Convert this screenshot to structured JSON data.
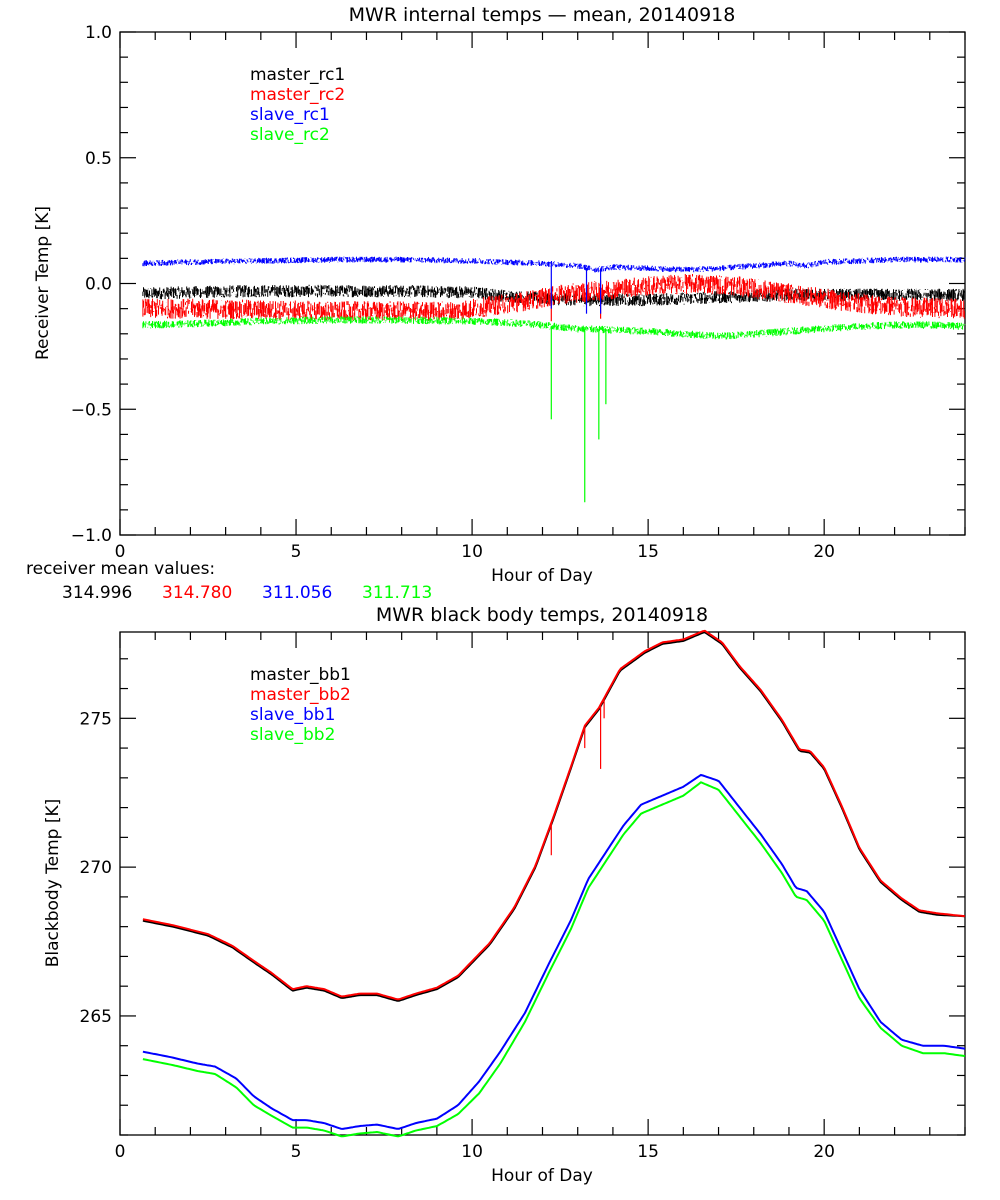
{
  "chart_data": [
    {
      "type": "line",
      "title": "MWR internal temps — mean, 20140918",
      "xlabel": "Hour of Day",
      "ylabel": "Receiver Temp [K]",
      "xlim": [
        0,
        24
      ],
      "ylim": [
        -1.0,
        1.0
      ],
      "xticks": [
        0,
        5,
        10,
        15,
        20
      ],
      "xtick_labels": [
        "0",
        "5",
        "10",
        "15",
        "20"
      ],
      "xminor_step": 1,
      "yticks": [
        -1.0,
        -0.5,
        0.0,
        0.5,
        1.0
      ],
      "ytick_labels": [
        "−1.0",
        "−0.5",
        "0.0",
        "0.5",
        "1.0"
      ],
      "yminor_step": 0.1,
      "grid": false,
      "legend_position": "top-left",
      "series": [
        {
          "name": "master_rc1",
          "color": "#000000",
          "noise": 0.025,
          "x": [
            0.65,
            2,
            4,
            6,
            8,
            10,
            11,
            12,
            13,
            14,
            15,
            16,
            17,
            18,
            19,
            20,
            21,
            22,
            23,
            24
          ],
          "y": [
            -0.04,
            -0.035,
            -0.03,
            -0.03,
            -0.03,
            -0.035,
            -0.05,
            -0.06,
            -0.065,
            -0.065,
            -0.065,
            -0.06,
            -0.055,
            -0.05,
            -0.045,
            -0.045,
            -0.045,
            -0.045,
            -0.045,
            -0.045
          ],
          "spikes": []
        },
        {
          "name": "master_rc2",
          "color": "#ff0000",
          "noise": 0.04,
          "x": [
            0.65,
            2,
            4,
            6,
            8,
            9.5,
            10.5,
            11.5,
            12.5,
            13.5,
            14.5,
            15.5,
            16.5,
            17.5,
            18.5,
            19.5,
            20.5,
            21.5,
            22.5,
            24
          ],
          "y": [
            -0.1,
            -0.1,
            -0.105,
            -0.11,
            -0.11,
            -0.11,
            -0.09,
            -0.07,
            -0.045,
            -0.03,
            -0.015,
            -0.005,
            0.0,
            -0.01,
            -0.03,
            -0.05,
            -0.07,
            -0.085,
            -0.095,
            -0.1
          ],
          "spikes": [
            [
              12.25,
              -0.15
            ],
            [
              13.65,
              -0.14
            ]
          ]
        },
        {
          "name": "slave_rc1",
          "color": "#0000ff",
          "noise": 0.012,
          "x": [
            0.65,
            2,
            4,
            6,
            8,
            10,
            11,
            12,
            13,
            13.5,
            14,
            15,
            16,
            17,
            18,
            19,
            19.5,
            20,
            21,
            22,
            23,
            24
          ],
          "y": [
            0.08,
            0.085,
            0.09,
            0.095,
            0.095,
            0.09,
            0.085,
            0.08,
            0.07,
            0.055,
            0.065,
            0.06,
            0.055,
            0.06,
            0.07,
            0.08,
            0.07,
            0.085,
            0.09,
            0.095,
            0.095,
            0.095
          ],
          "spikes": [
            [
              12.25,
              -0.1
            ],
            [
              13.25,
              -0.12
            ],
            [
              13.65,
              -0.12
            ]
          ]
        },
        {
          "name": "slave_rc2",
          "color": "#00ff00",
          "noise": 0.015,
          "x": [
            0.65,
            2,
            4,
            6,
            8,
            10,
            11,
            12,
            13,
            14,
            15,
            16,
            17,
            18,
            19,
            20,
            21,
            22,
            23,
            24
          ],
          "y": [
            -0.165,
            -0.16,
            -0.15,
            -0.145,
            -0.145,
            -0.15,
            -0.155,
            -0.165,
            -0.18,
            -0.185,
            -0.19,
            -0.2,
            -0.21,
            -0.2,
            -0.19,
            -0.18,
            -0.17,
            -0.165,
            -0.165,
            -0.17
          ],
          "spikes": [
            [
              12.25,
              -0.54
            ],
            [
              13.2,
              -0.87
            ],
            [
              13.6,
              -0.62
            ],
            [
              13.8,
              -0.48
            ]
          ]
        }
      ]
    },
    {
      "type": "line",
      "title": "MWR black body temps, 20140918",
      "xlabel": "Hour of Day",
      "ylabel": "Blackbody Temp [K]",
      "xlim": [
        0,
        24
      ],
      "ylim": [
        261.0,
        277.9
      ],
      "xticks": [
        0,
        5,
        10,
        15,
        20
      ],
      "xtick_labels": [
        "0",
        "5",
        "10",
        "15",
        "20"
      ],
      "xminor_step": 1,
      "yticks": [
        265,
        270,
        275
      ],
      "ytick_labels": [
        "265",
        "270",
        "275"
      ],
      "yminor_step": 1,
      "grid": false,
      "legend_position": "top-left",
      "series": [
        {
          "name": "master_bb1",
          "color": "#000000",
          "x": [
            0.65,
            1.5,
            2.5,
            3.2,
            3.8,
            4.3,
            4.9,
            5.3,
            5.8,
            6.3,
            6.8,
            7.3,
            7.9,
            8.4,
            9.0,
            9.6,
            10.5,
            11.2,
            11.8,
            12.3,
            12.8,
            13.2,
            13.6,
            14.2,
            14.9,
            15.4,
            16.0,
            16.6,
            17.1,
            17.6,
            18.2,
            18.8,
            19.3,
            19.6,
            20.0,
            20.5,
            21.0,
            21.6,
            22.2,
            22.7,
            23.2,
            24.0
          ],
          "y": [
            268.2,
            268.0,
            267.7,
            267.3,
            266.8,
            266.4,
            265.85,
            265.95,
            265.85,
            265.6,
            265.7,
            265.7,
            265.5,
            265.7,
            265.9,
            266.3,
            267.4,
            268.6,
            270.0,
            271.6,
            273.3,
            274.7,
            275.3,
            276.6,
            277.2,
            277.5,
            277.6,
            277.9,
            277.5,
            276.7,
            275.9,
            274.9,
            273.9,
            273.85,
            273.3,
            272.0,
            270.6,
            269.5,
            268.9,
            268.5,
            268.4,
            268.35
          ],
          "spikes": []
        },
        {
          "name": "master_bb2",
          "color": "#ff0000",
          "x": [
            0.65,
            1.5,
            2.5,
            3.2,
            3.8,
            4.3,
            4.9,
            5.3,
            5.8,
            6.3,
            6.8,
            7.3,
            7.9,
            8.4,
            9.0,
            9.6,
            10.5,
            11.2,
            11.8,
            12.3,
            12.8,
            13.2,
            13.6,
            14.2,
            14.9,
            15.4,
            16.0,
            16.6,
            17.1,
            17.6,
            18.2,
            18.8,
            19.3,
            19.6,
            20.0,
            20.5,
            21.0,
            21.6,
            22.2,
            22.7,
            23.2,
            24.0
          ],
          "y": [
            268.25,
            268.05,
            267.75,
            267.35,
            266.85,
            266.45,
            265.9,
            266.0,
            265.9,
            265.65,
            265.75,
            265.75,
            265.55,
            265.75,
            265.95,
            266.35,
            267.45,
            268.65,
            270.05,
            271.65,
            273.35,
            274.75,
            275.35,
            276.65,
            277.25,
            277.55,
            277.65,
            277.95,
            277.55,
            276.75,
            275.95,
            274.95,
            273.95,
            273.9,
            273.35,
            272.05,
            270.65,
            269.55,
            268.95,
            268.55,
            268.45,
            268.35
          ],
          "spikes": [
            [
              12.25,
              270.4
            ],
            [
              13.2,
              274.0
            ],
            [
              13.65,
              273.3
            ],
            [
              13.75,
              275.0
            ]
          ]
        },
        {
          "name": "slave_bb1",
          "color": "#0000ff",
          "x": [
            0.65,
            1.5,
            2.2,
            2.7,
            3.3,
            3.8,
            4.3,
            4.9,
            5.3,
            5.8,
            6.3,
            6.8,
            7.3,
            7.9,
            8.4,
            9.0,
            9.6,
            10.2,
            10.8,
            11.5,
            12.2,
            12.8,
            13.3,
            13.8,
            14.3,
            14.8,
            15.4,
            16.0,
            16.5,
            17.0,
            17.6,
            18.2,
            18.8,
            19.2,
            19.5,
            20.0,
            20.5,
            21.0,
            21.6,
            22.2,
            22.8,
            23.4,
            24.0
          ],
          "y": [
            263.8,
            263.6,
            263.4,
            263.3,
            262.9,
            262.3,
            261.9,
            261.5,
            261.5,
            261.4,
            261.2,
            261.3,
            261.35,
            261.2,
            261.4,
            261.55,
            262.0,
            262.8,
            263.8,
            265.1,
            266.8,
            268.2,
            269.6,
            270.5,
            271.4,
            272.1,
            272.4,
            272.7,
            273.1,
            272.9,
            272.0,
            271.1,
            270.1,
            269.3,
            269.2,
            268.5,
            267.2,
            265.9,
            264.8,
            264.2,
            264.0,
            264.0,
            263.9
          ],
          "spikes": []
        },
        {
          "name": "slave_bb2",
          "color": "#00ff00",
          "x": [
            0.65,
            1.5,
            2.2,
            2.7,
            3.3,
            3.8,
            4.3,
            4.9,
            5.3,
            5.8,
            6.3,
            6.8,
            7.3,
            7.9,
            8.4,
            9.0,
            9.6,
            10.2,
            10.8,
            11.5,
            12.2,
            12.8,
            13.3,
            13.8,
            14.3,
            14.8,
            15.4,
            16.0,
            16.5,
            17.0,
            17.6,
            18.2,
            18.8,
            19.2,
            19.5,
            20.0,
            20.5,
            21.0,
            21.6,
            22.2,
            22.8,
            23.4,
            24.0
          ],
          "y": [
            263.55,
            263.35,
            263.15,
            263.05,
            262.6,
            262.0,
            261.65,
            261.25,
            261.25,
            261.15,
            260.95,
            261.05,
            261.1,
            260.95,
            261.15,
            261.3,
            261.7,
            262.4,
            263.4,
            264.8,
            266.5,
            267.9,
            269.3,
            270.2,
            271.1,
            271.8,
            272.1,
            272.4,
            272.85,
            272.6,
            271.7,
            270.8,
            269.8,
            269.0,
            268.9,
            268.2,
            266.9,
            265.6,
            264.6,
            264.0,
            263.75,
            263.75,
            263.65
          ],
          "spikes": []
        }
      ]
    }
  ],
  "receiver_means": {
    "label": "receiver mean values:",
    "values": [
      {
        "text": "314.996",
        "color": "#000000"
      },
      {
        "text": "314.780",
        "color": "#ff0000"
      },
      {
        "text": "311.056",
        "color": "#0000ff"
      },
      {
        "text": "311.713",
        "color": "#00ff00"
      }
    ]
  }
}
